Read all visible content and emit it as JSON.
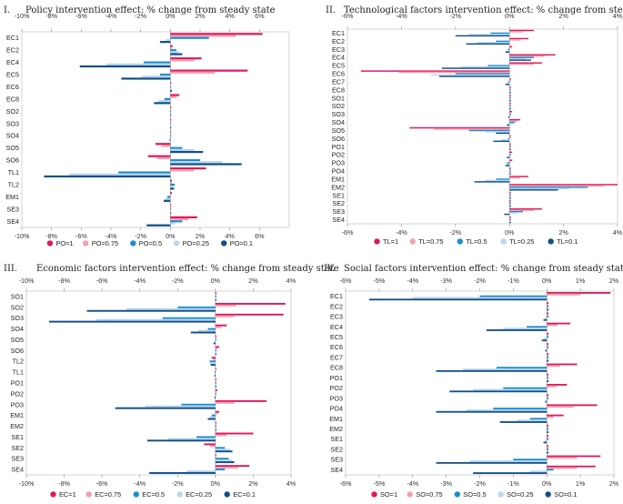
{
  "colors": [
    "#e0185e",
    "#f0a0ad",
    "#1a8fcf",
    "#b9d6ee",
    "#124e86"
  ],
  "chart_data": [
    {
      "type": "bar",
      "orientation": "horizontal",
      "title": "Policy intervention effect: % change from steady state",
      "numeral": "I.",
      "xlim": [
        -10,
        8
      ],
      "ticks": [
        -10,
        -8,
        -6,
        -4,
        -2,
        0,
        2,
        4,
        6
      ],
      "tick_labels": [
        "-10%",
        "-8%",
        "-6%",
        "-4%",
        "-2%",
        "0%",
        "2%",
        "4%",
        "6%"
      ],
      "categories": [
        "EC1",
        "EC2",
        "EC4",
        "EC5",
        "EC6",
        "EC8",
        "SO2",
        "SO3",
        "SO4",
        "SO5",
        "SO6",
        "TL1",
        "TL2",
        "EM1",
        "SE3",
        "SE4"
      ],
      "legend": [
        "PO=1",
        "PO=0.75",
        "PO=0.5",
        "PO=0.25",
        "PO=0.1"
      ],
      "series": [
        {
          "name": "PO=1",
          "values": [
            6.2,
            0.15,
            2.1,
            5.2,
            0.05,
            0.6,
            0.05,
            0.05,
            0.05,
            -1.0,
            -1.5,
            2.4,
            0.1,
            0.1,
            0.05,
            1.8
          ]
        },
        {
          "name": "PO=0.75",
          "values": [
            4.4,
            0.1,
            1.6,
            3.0,
            0.05,
            0.4,
            0.05,
            0.05,
            0.05,
            -0.6,
            -0.9,
            1.6,
            0.1,
            0.05,
            0.05,
            1.2
          ]
        },
        {
          "name": "PO=0.5",
          "values": [
            2.6,
            0.4,
            -1.8,
            -0.7,
            0.05,
            -0.4,
            0.05,
            0.05,
            0.05,
            0.8,
            2.0,
            -3.5,
            0.3,
            -0.2,
            0.05,
            0.8
          ]
        },
        {
          "name": "PO=0.25",
          "values": [
            -0.3,
            0.55,
            -4.3,
            -1.9,
            0.05,
            -0.8,
            0.05,
            0.05,
            0.05,
            1.6,
            3.5,
            -6.8,
            0.2,
            -0.35,
            0.05,
            0.3
          ]
        },
        {
          "name": "PO=0.1",
          "values": [
            -0.7,
            0.8,
            -6.1,
            -3.3,
            0.1,
            -1.1,
            0.05,
            0.05,
            -0.05,
            2.2,
            4.8,
            -8.5,
            0.25,
            -0.45,
            0.05,
            -1.6
          ]
        }
      ]
    },
    {
      "type": "bar",
      "orientation": "horizontal",
      "title": "Technological factors intervention effect: % change from steady state",
      "numeral": "II.",
      "xlim": [
        -6,
        4
      ],
      "ticks": [
        -6,
        -4,
        -2,
        0,
        2,
        4
      ],
      "tick_labels": [
        "-6%",
        "-4%",
        "-2%",
        "0%",
        "2%",
        "4%"
      ],
      "categories": [
        "EC1",
        "EC2",
        "EC3",
        "EC4",
        "EC5",
        "EC6",
        "EC7",
        "EC8",
        "SO1",
        "SO2",
        "SO3",
        "SO4",
        "SO5",
        "SO6",
        "PO1",
        "PO2",
        "PO3",
        "PO4",
        "EM1",
        "EM2",
        "SE1",
        "SE2",
        "SE3",
        "SE4"
      ],
      "legend": [
        "TL=1",
        "TL=0.75",
        "TL=0.5",
        "TL=0.25",
        "TL=0.1"
      ],
      "series": [
        {
          "name": "TL=1",
          "values": [
            0.9,
            0.7,
            0.1,
            1.7,
            1.2,
            -5.5,
            0.05,
            0.05,
            0.05,
            0.05,
            0.1,
            0.4,
            -3.7,
            0.05,
            0.05,
            0.1,
            0.1,
            0.05,
            0.7,
            4.0,
            0.05,
            0.05,
            1.2,
            0.05
          ]
        },
        {
          "name": "TL=0.75",
          "values": [
            0.5,
            0.4,
            0.05,
            1.3,
            0.9,
            -4.1,
            0.05,
            0.05,
            0.05,
            0.05,
            0.05,
            0.3,
            -2.8,
            0.05,
            0.05,
            0.05,
            0.05,
            0.05,
            0.4,
            3.5,
            0.05,
            0.05,
            0.9,
            0.05
          ]
        },
        {
          "name": "TL=0.5",
          "values": [
            -0.7,
            -0.5,
            -0.05,
            0.9,
            -0.8,
            -2.0,
            -0.05,
            0.05,
            0.05,
            0.05,
            0.05,
            0.2,
            -1.5,
            -0.05,
            0.05,
            0.05,
            -0.1,
            0.05,
            -0.5,
            2.9,
            0.05,
            0.05,
            0.5,
            0.05
          ]
        },
        {
          "name": "TL=0.25",
          "values": [
            -1.5,
            -1.2,
            -0.1,
            0.6,
            -1.8,
            -2.9,
            -0.1,
            0.05,
            0.05,
            0.05,
            0.05,
            0.15,
            -0.9,
            -0.3,
            0.05,
            0.05,
            -0.1,
            0.05,
            -0.9,
            2.2,
            0.05,
            0.05,
            0.3,
            0.05
          ]
        },
        {
          "name": "TL=0.1",
          "values": [
            -2.0,
            -1.6,
            -0.15,
            0.8,
            -2.5,
            -2.6,
            -0.15,
            0.05,
            0.05,
            0.05,
            -0.05,
            -0.1,
            -0.5,
            -0.6,
            0.05,
            -0.1,
            -0.15,
            0.05,
            -1.3,
            1.8,
            0.05,
            0.05,
            -0.2,
            0.05
          ]
        }
      ]
    },
    {
      "type": "bar",
      "orientation": "horizontal",
      "title": "Economic factors intervention effect: % change from steady state",
      "numeral": "III.",
      "xlim": [
        -10,
        4
      ],
      "ticks": [
        -10,
        -8,
        -6,
        -4,
        -2,
        0,
        2,
        4
      ],
      "tick_labels": [
        "-10%",
        "-8%",
        "-6%",
        "-4%",
        "-2%",
        "0%",
        "2%",
        "4%"
      ],
      "categories": [
        "SO1",
        "SO2",
        "SO3",
        "SO4",
        "SO5",
        "SO6",
        "TL2",
        "TL1",
        "PO1",
        "PO2",
        "PO3",
        "EM1",
        "EM2",
        "SE1",
        "SE2",
        "SE3",
        "SE4"
      ],
      "legend": [
        "EC=1",
        "EC=0.75",
        "EC=0.5",
        "EC=0.25",
        "EC=0.1"
      ],
      "series": [
        {
          "name": "EC=1",
          "values": [
            0.05,
            3.7,
            3.6,
            0.6,
            0.05,
            0.2,
            -0.2,
            0.05,
            0.05,
            0.1,
            2.7,
            0.2,
            0.05,
            2.0,
            -0.6,
            0.05,
            1.8
          ]
        },
        {
          "name": "EC=0.75",
          "values": [
            0.05,
            1.1,
            1.0,
            0.3,
            0.05,
            0.1,
            -0.1,
            0.05,
            0.05,
            0.05,
            1.0,
            0.1,
            0.05,
            0.6,
            -0.3,
            0.05,
            1.2
          ]
        },
        {
          "name": "EC=0.5",
          "values": [
            0.05,
            -2.0,
            -2.8,
            -0.4,
            0.05,
            0.05,
            -0.3,
            -0.05,
            0.05,
            0.05,
            -1.8,
            -0.2,
            0.05,
            -1.0,
            0.5,
            0.7,
            0.5
          ]
        },
        {
          "name": "EC=0.25",
          "values": [
            0.05,
            -4.7,
            -6.3,
            -0.9,
            -0.05,
            0.05,
            -0.3,
            -0.05,
            0.05,
            0.05,
            -3.7,
            -0.3,
            0.05,
            -2.5,
            0.8,
            0.9,
            -1.5
          ]
        },
        {
          "name": "EC=0.1",
          "values": [
            0.05,
            -6.8,
            -8.8,
            -1.3,
            -0.1,
            0.05,
            -0.25,
            -0.05,
            0.05,
            -0.05,
            -5.3,
            -0.4,
            0.05,
            -3.6,
            0.9,
            1.0,
            -3.5
          ]
        }
      ]
    },
    {
      "type": "bar",
      "orientation": "horizontal",
      "title": "Social factors intervention effect: % change from steady state",
      "numeral": "IV.",
      "xlim": [
        -6,
        2
      ],
      "ticks": [
        -6,
        -5,
        -4,
        -3,
        -2,
        -1,
        0,
        1,
        2
      ],
      "tick_labels": [
        "-6%",
        "-5%",
        "-4%",
        "-3%",
        "-2%",
        "-1%",
        "0%",
        "1%",
        "2%"
      ],
      "categories": [
        "EC1",
        "EC2",
        "EC3",
        "EC4",
        "EC5",
        "EC6",
        "EC7",
        "EC8",
        "PO1",
        "PO2",
        "PO3",
        "PO4",
        "EM1",
        "EM2",
        "SE1",
        "SE2",
        "SE3",
        "SE4"
      ],
      "legend": [
        "SO=1",
        "SO=0.75",
        "SO=0.5",
        "SO=0.25",
        "SO=0.1"
      ],
      "series": [
        {
          "name": "SO=1",
          "values": [
            1.9,
            0.05,
            0.05,
            0.7,
            0.05,
            0.05,
            0.05,
            0.9,
            0.05,
            0.6,
            0.05,
            1.5,
            0.5,
            0.05,
            0.05,
            0.05,
            1.6,
            1.45
          ]
        },
        {
          "name": "SO=0.75",
          "values": [
            1.0,
            0.05,
            0.05,
            0.3,
            0.05,
            0.05,
            0.05,
            0.4,
            0.05,
            0.3,
            0.05,
            0.8,
            0.2,
            0.05,
            0.05,
            0.05,
            0.9,
            0.9
          ]
        },
        {
          "name": "SO=0.5",
          "values": [
            -2.0,
            0.05,
            0.05,
            -0.6,
            0.05,
            0.05,
            0.05,
            -1.5,
            0.05,
            -1.3,
            0.05,
            -1.6,
            -0.5,
            0.05,
            0.05,
            0.05,
            -1.0,
            0.2
          ]
        },
        {
          "name": "SO=0.25",
          "values": [
            -4.0,
            0.05,
            -0.05,
            -1.3,
            -0.1,
            0.05,
            0.05,
            -2.5,
            0.05,
            -2.2,
            0.05,
            -2.4,
            -0.9,
            0.05,
            -0.05,
            0.05,
            -2.3,
            -0.5
          ]
        },
        {
          "name": "SO=0.1",
          "values": [
            -5.3,
            0.05,
            -0.1,
            -1.8,
            -0.15,
            -0.05,
            0.05,
            -3.3,
            0.05,
            -2.9,
            -0.05,
            -3.3,
            -1.4,
            0.05,
            -0.1,
            0.05,
            -3.3,
            -2.2
          ]
        }
      ]
    }
  ]
}
